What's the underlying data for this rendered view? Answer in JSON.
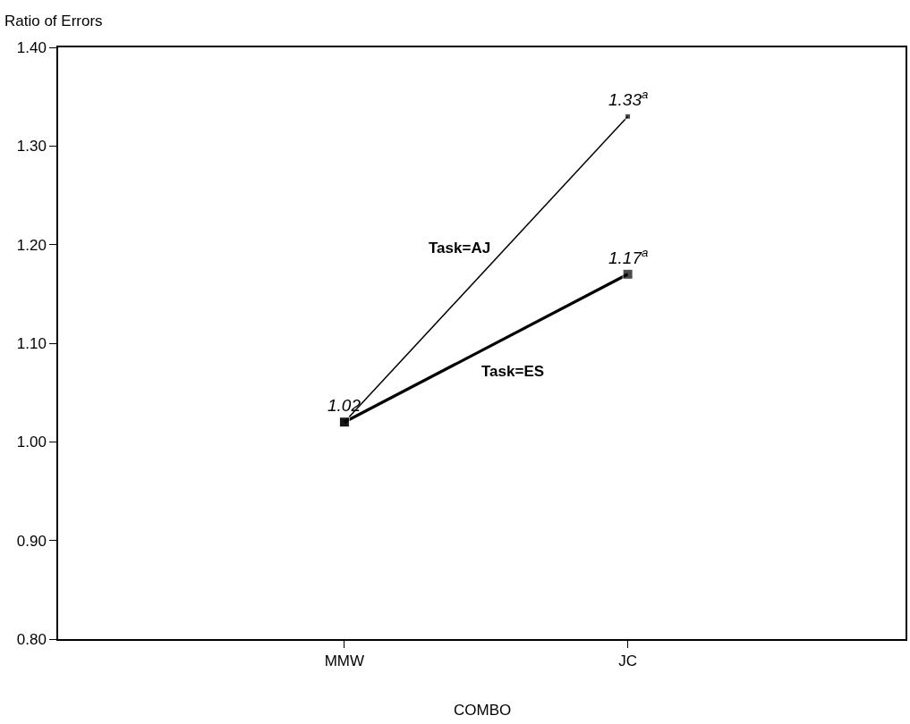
{
  "chart_data": {
    "type": "line",
    "xlabel": "COMBO",
    "ylabel": "Ratio of Errors",
    "categories": [
      "MMW",
      "JC"
    ],
    "series": [
      {
        "name": "Task=AJ",
        "color": "#000000",
        "values": [
          1.02,
          1.33
        ],
        "value_labels": [
          null,
          "1.33$^{a}$"
        ]
      },
      {
        "name": "Task=ES",
        "color": "#000000",
        "values": [
          1.02,
          1.17
        ],
        "value_labels": [
          "1.02",
          "1.17$^{a}$"
        ]
      }
    ],
    "ylim": [
      0.8,
      1.4
    ],
    "yticks": [
      {
        "value": 0.8,
        "label": "0.80"
      },
      {
        "value": 0.9,
        "label": "0.90"
      },
      {
        "value": 1.0,
        "label": "1.00"
      },
      {
        "value": 1.1,
        "label": "1.10"
      },
      {
        "value": 1.2,
        "label": "1.20"
      },
      {
        "value": 1.3,
        "label": "1.30"
      },
      {
        "value": 1.4,
        "label": "1.40"
      }
    ],
    "marker": "square",
    "line_style": "solid"
  }
}
